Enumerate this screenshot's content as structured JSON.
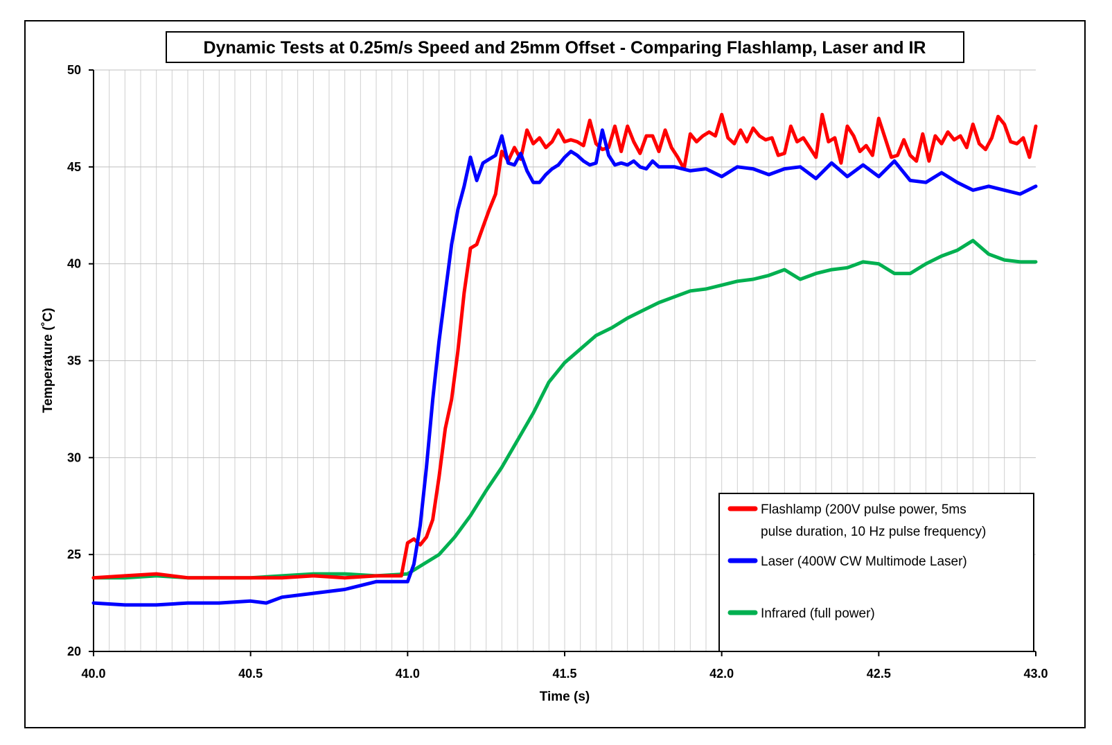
{
  "chart_data": {
    "type": "line",
    "title": "Dynamic Tests at 0.25m/s Speed and 25mm Offset - Comparing Flashlamp, Laser and IR",
    "xlabel": "Time (s)",
    "ylabel": "Temperature (˚C)",
    "xlim": [
      40.0,
      43.0
    ],
    "ylim": [
      20,
      50
    ],
    "x_ticks": [
      "40.0",
      "40.5",
      "41.0",
      "41.5",
      "42.0",
      "42.5",
      "43.0"
    ],
    "y_ticks": [
      "20",
      "25",
      "30",
      "35",
      "40",
      "45",
      "50"
    ],
    "grid": true,
    "legend_position": "bottom-right",
    "series": [
      {
        "name": "Flashlamp (200V pulse power, 5ms pulse duration, 10 Hz pulse frequency)",
        "legend_lines": [
          "Flashlamp (200V pulse power, 5ms",
          "pulse duration, 10 Hz pulse frequency)"
        ],
        "color": "#ff0000",
        "x": [
          40.0,
          40.1,
          40.2,
          40.3,
          40.4,
          40.5,
          40.6,
          40.7,
          40.8,
          40.9,
          40.98,
          41.0,
          41.02,
          41.04,
          41.06,
          41.08,
          41.1,
          41.12,
          41.14,
          41.16,
          41.18,
          41.2,
          41.22,
          41.24,
          41.26,
          41.28,
          41.3,
          41.32,
          41.34,
          41.36,
          41.38,
          41.4,
          41.42,
          41.44,
          41.46,
          41.48,
          41.5,
          41.52,
          41.54,
          41.56,
          41.58,
          41.6,
          41.62,
          41.64,
          41.66,
          41.68,
          41.7,
          41.72,
          41.74,
          41.76,
          41.78,
          41.8,
          41.82,
          41.84,
          41.86,
          41.88,
          41.9,
          41.92,
          41.94,
          41.96,
          41.98,
          42.0,
          42.02,
          42.04,
          42.06,
          42.08,
          42.1,
          42.12,
          42.14,
          42.16,
          42.18,
          42.2,
          42.22,
          42.24,
          42.26,
          42.28,
          42.3,
          42.32,
          42.34,
          42.36,
          42.38,
          42.4,
          42.42,
          42.44,
          42.46,
          42.48,
          42.5,
          42.52,
          42.54,
          42.56,
          42.58,
          42.6,
          42.62,
          42.64,
          42.66,
          42.68,
          42.7,
          42.72,
          42.74,
          42.76,
          42.78,
          42.8,
          42.82,
          42.84,
          42.86,
          42.88,
          42.9,
          42.92,
          42.94,
          42.96,
          42.98,
          43.0
        ],
        "y": [
          23.8,
          23.9,
          24.0,
          23.8,
          23.8,
          23.8,
          23.8,
          23.9,
          23.8,
          23.9,
          23.9,
          25.6,
          25.8,
          25.5,
          25.9,
          26.8,
          29.0,
          31.5,
          33.0,
          35.5,
          38.5,
          40.8,
          41.0,
          41.9,
          42.8,
          43.6,
          45.8,
          45.3,
          46.0,
          45.4,
          46.9,
          46.2,
          46.5,
          46.0,
          46.3,
          46.9,
          46.3,
          46.4,
          46.3,
          46.1,
          47.4,
          46.2,
          45.9,
          46.0,
          47.1,
          45.8,
          47.1,
          46.3,
          45.7,
          46.6,
          46.6,
          45.8,
          46.9,
          46.0,
          45.5,
          44.9,
          46.7,
          46.3,
          46.6,
          46.8,
          46.6,
          47.7,
          46.5,
          46.2,
          46.9,
          46.3,
          47.0,
          46.6,
          46.4,
          46.5,
          45.6,
          45.7,
          47.1,
          46.3,
          46.5,
          46.0,
          45.5,
          47.7,
          46.3,
          46.5,
          45.2,
          47.1,
          46.6,
          45.8,
          46.1,
          45.6,
          47.5,
          46.5,
          45.5,
          45.6,
          46.4,
          45.6,
          45.3,
          46.7,
          45.3,
          46.6,
          46.2,
          46.8,
          46.4,
          46.6,
          46.0,
          47.2,
          46.2,
          45.9,
          46.5,
          47.6,
          47.2,
          46.3,
          46.2,
          46.5,
          45.5,
          47.1
        ]
      },
      {
        "name": "Laser (400W CW Multimode Laser)",
        "legend_lines": [
          "Laser (400W CW Multimode Laser)"
        ],
        "color": "#0000ff",
        "x": [
          40.0,
          40.1,
          40.2,
          40.3,
          40.4,
          40.5,
          40.55,
          40.6,
          40.7,
          40.8,
          40.9,
          41.0,
          41.02,
          41.04,
          41.06,
          41.08,
          41.1,
          41.12,
          41.14,
          41.16,
          41.18,
          41.2,
          41.22,
          41.24,
          41.26,
          41.28,
          41.3,
          41.32,
          41.34,
          41.36,
          41.38,
          41.4,
          41.42,
          41.44,
          41.46,
          41.48,
          41.5,
          41.52,
          41.54,
          41.56,
          41.58,
          41.6,
          41.62,
          41.64,
          41.66,
          41.68,
          41.7,
          41.72,
          41.74,
          41.76,
          41.78,
          41.8,
          41.85,
          41.9,
          41.95,
          42.0,
          42.05,
          42.1,
          42.15,
          42.2,
          42.25,
          42.3,
          42.35,
          42.4,
          42.45,
          42.5,
          42.55,
          42.6,
          42.65,
          42.7,
          42.75,
          42.8,
          42.85,
          42.9,
          42.95,
          43.0
        ],
        "y": [
          22.5,
          22.4,
          22.4,
          22.5,
          22.5,
          22.6,
          22.5,
          22.8,
          23.0,
          23.2,
          23.6,
          23.6,
          24.5,
          26.5,
          29.5,
          33.0,
          36.0,
          38.5,
          41.0,
          42.8,
          44.0,
          45.5,
          44.3,
          45.2,
          45.4,
          45.6,
          46.6,
          45.2,
          45.1,
          45.7,
          44.8,
          44.2,
          44.2,
          44.6,
          44.9,
          45.1,
          45.5,
          45.8,
          45.6,
          45.3,
          45.1,
          45.2,
          46.9,
          45.6,
          45.1,
          45.2,
          45.1,
          45.3,
          45.0,
          44.9,
          45.3,
          45.0,
          45.0,
          44.8,
          44.9,
          44.5,
          45.0,
          44.9,
          44.6,
          44.9,
          45.0,
          44.4,
          45.2,
          44.5,
          45.1,
          44.5,
          45.3,
          44.3,
          44.2,
          44.7,
          44.2,
          43.8,
          44.0,
          43.8,
          43.6,
          44.0
        ]
      },
      {
        "name": "Infrared (full power)",
        "legend_lines": [
          "Infrared (full power)"
        ],
        "color": "#00b050",
        "x": [
          40.0,
          40.1,
          40.2,
          40.3,
          40.4,
          40.5,
          40.6,
          40.7,
          40.8,
          40.9,
          41.0,
          41.05,
          41.1,
          41.15,
          41.2,
          41.25,
          41.3,
          41.35,
          41.4,
          41.45,
          41.5,
          41.55,
          41.6,
          41.65,
          41.7,
          41.75,
          41.8,
          41.85,
          41.9,
          41.95,
          42.0,
          42.05,
          42.1,
          42.15,
          42.2,
          42.25,
          42.3,
          42.35,
          42.4,
          42.45,
          42.5,
          42.55,
          42.6,
          42.65,
          42.7,
          42.75,
          42.8,
          42.85,
          42.9,
          42.95,
          43.0
        ],
        "y": [
          23.8,
          23.8,
          23.9,
          23.8,
          23.8,
          23.8,
          23.9,
          24.0,
          24.0,
          23.9,
          24.0,
          24.5,
          25.0,
          25.9,
          27.0,
          28.3,
          29.5,
          30.9,
          32.3,
          33.9,
          34.9,
          35.6,
          36.3,
          36.7,
          37.2,
          37.6,
          38.0,
          38.3,
          38.6,
          38.7,
          38.9,
          39.1,
          39.2,
          39.4,
          39.7,
          39.2,
          39.5,
          39.7,
          39.8,
          40.1,
          40.0,
          39.5,
          39.5,
          40.0,
          40.4,
          40.7,
          41.2,
          40.5,
          40.2,
          40.1,
          40.1
        ]
      }
    ]
  }
}
